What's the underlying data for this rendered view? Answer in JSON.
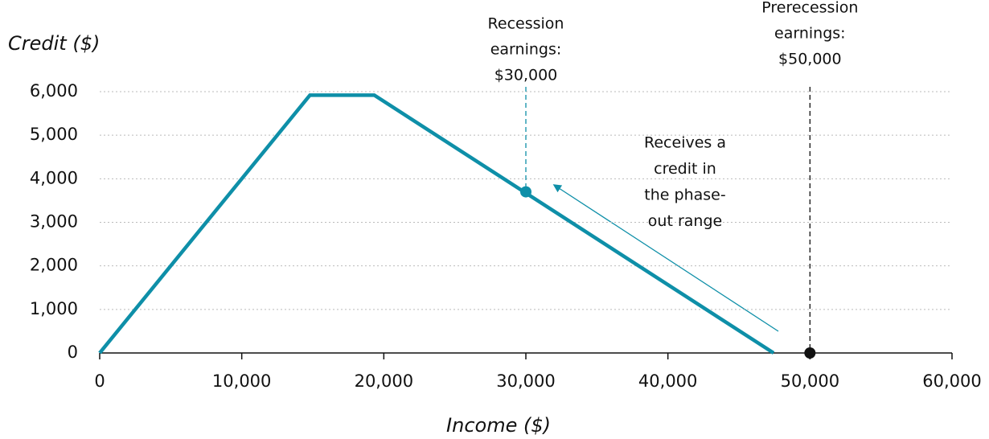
{
  "chart_data": {
    "type": "line",
    "x_label": "Income ($)",
    "y_label": "Credit ($)",
    "x": [
      0,
      14800,
      19330,
      47440
    ],
    "values": [
      0,
      5920,
      5920,
      0
    ],
    "color": "#0e8fa8",
    "xlim": [
      0,
      60000
    ],
    "ylim": [
      0,
      6000
    ],
    "xticks": [
      0,
      {
        "value": 10000,
        "label": "10,000"
      },
      {
        "value": 20000,
        "label": "20,000"
      },
      {
        "value": 30000,
        "label": "30,000"
      },
      {
        "value": 40000,
        "label": "40,000"
      },
      {
        "value": 50000,
        "label": "50,000"
      },
      {
        "value": 60000,
        "label": "60,000"
      }
    ],
    "yticks": [
      0,
      {
        "value": 1000,
        "label": "1,000"
      },
      {
        "value": 2000,
        "label": "2,000"
      },
      {
        "value": 3000,
        "label": "3,000"
      },
      {
        "value": 4000,
        "label": "4,000"
      },
      {
        "value": 5000,
        "label": "5,000"
      },
      {
        "value": 6000,
        "label": "6,000"
      }
    ],
    "grid": true,
    "points": [
      {
        "lines": [
          "Recession",
          "earnings:",
          "$30,000"
        ],
        "x": 30000,
        "y": 3700,
        "color": "#0e8fa8"
      },
      {
        "lines": [
          "Prerecession",
          "earnings:",
          "$50,000"
        ],
        "x": 50000,
        "y": 0,
        "color": "#111111"
      }
    ],
    "annotation": [
      "Receives a",
      "credit in",
      "the phase-",
      "out range"
    ]
  }
}
